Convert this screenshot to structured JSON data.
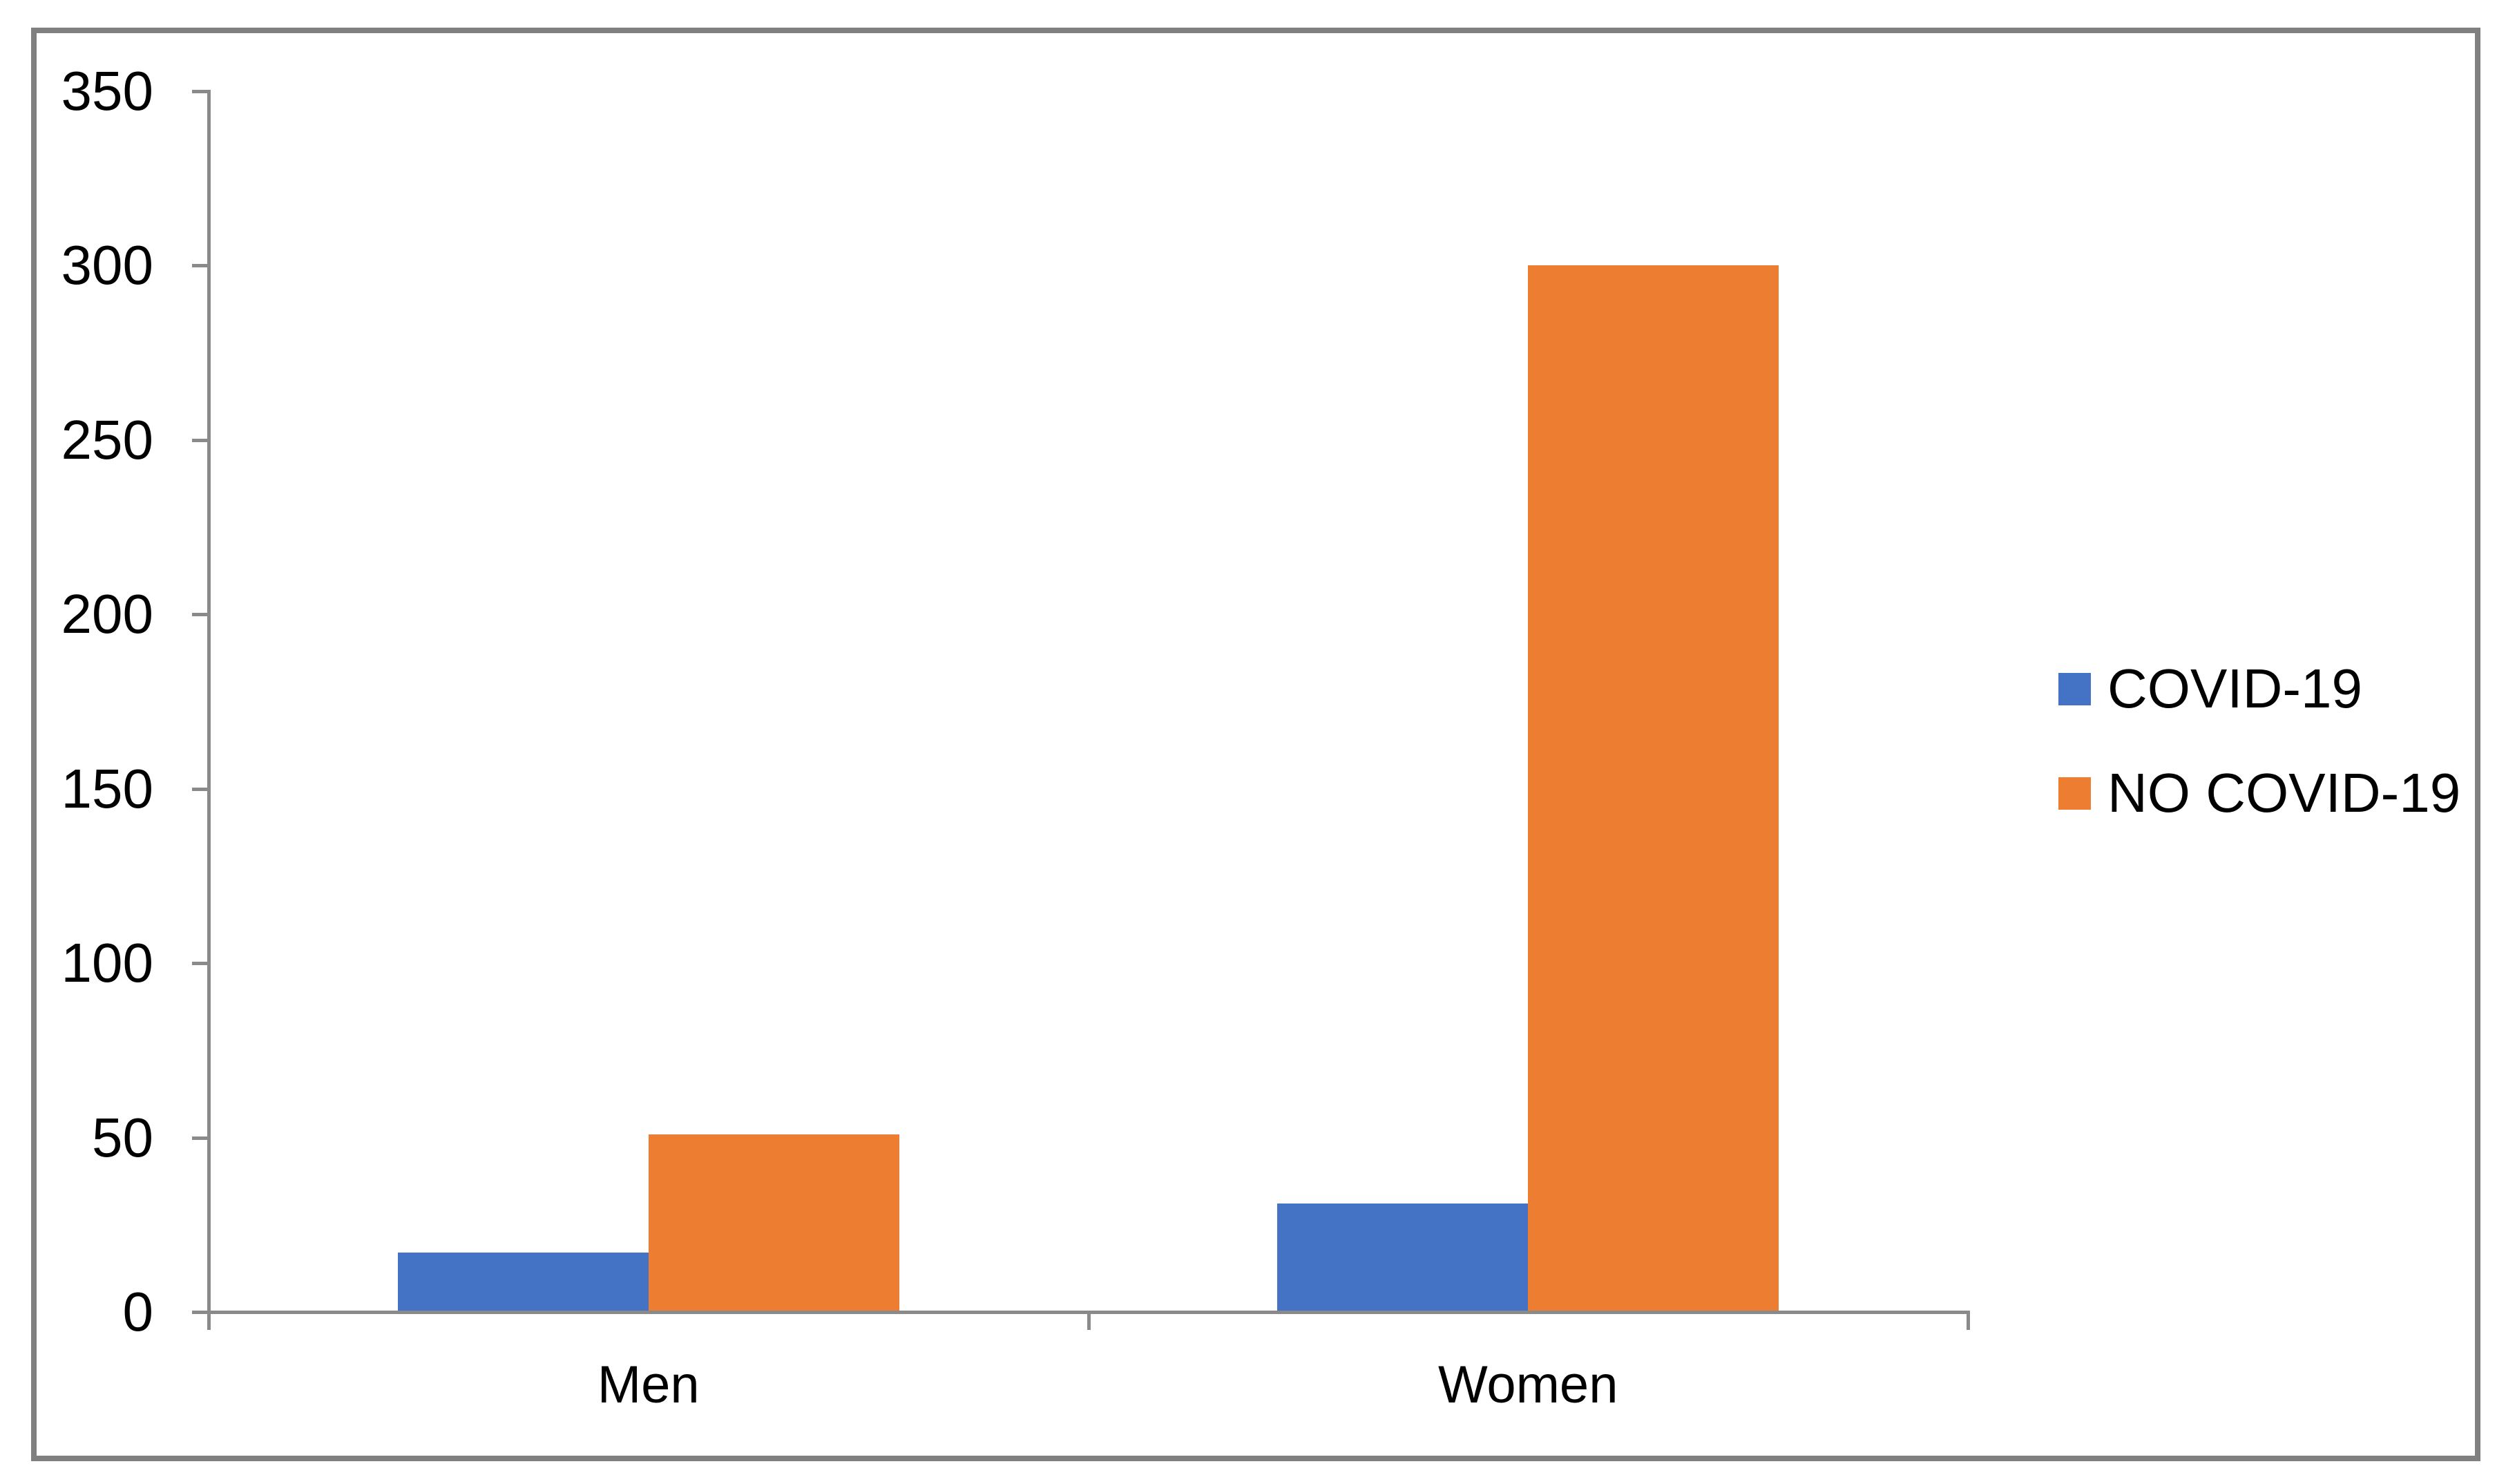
{
  "chart_data": {
    "type": "bar",
    "categories": [
      "Men",
      "Women"
    ],
    "series": [
      {
        "name": "COVID-19",
        "color": "#4472C4",
        "values": [
          17,
          31
        ]
      },
      {
        "name": "NO COVID-19",
        "color": "#ED7D31",
        "values": [
          51,
          300
        ]
      }
    ],
    "title": "",
    "xlabel": "",
    "ylabel": "",
    "ylim": [
      0,
      350
    ],
    "ytick_step": 50,
    "ytick_labels": [
      "0",
      "50",
      "100",
      "150",
      "200",
      "250",
      "300",
      "350"
    ],
    "grid": false,
    "legend_position": "right",
    "axis_color": "#8A8A8A",
    "border_color": "#808080",
    "text_color": "#000000",
    "background_color": "#FFFFFF"
  }
}
